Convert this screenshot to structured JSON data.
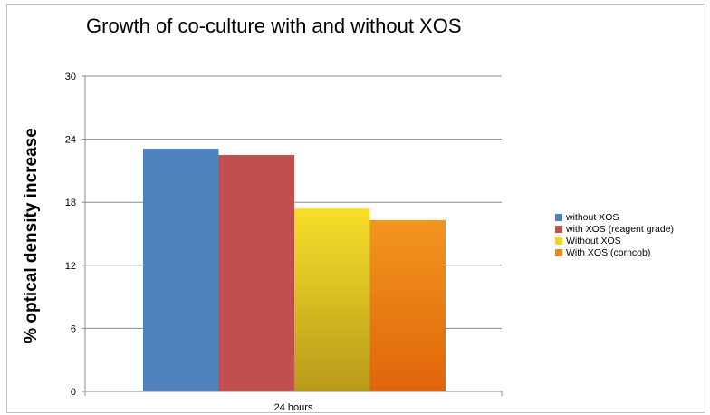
{
  "chart_data": {
    "type": "bar",
    "title": "Growth of co-culture with and without XOS",
    "xlabel": "",
    "ylabel": "% optical density increase",
    "categories": [
      "24 hours"
    ],
    "series": [
      {
        "name": "without XOS",
        "values": [
          23.1
        ],
        "color": "#4f81bd"
      },
      {
        "name": "with XOS (reagent grade)",
        "values": [
          22.5
        ],
        "color": "#c0504d"
      },
      {
        "name": "Without XOS",
        "values": [
          17.4
        ],
        "color": "#f2d41f"
      },
      {
        "name": "With XOS (corncob)",
        "values": [
          16.3
        ],
        "color": "#f0860f"
      }
    ],
    "ylim": [
      0,
      30
    ],
    "yticks": [
      0,
      6,
      12,
      18,
      24,
      30
    ],
    "grid": true,
    "legend": "right"
  }
}
